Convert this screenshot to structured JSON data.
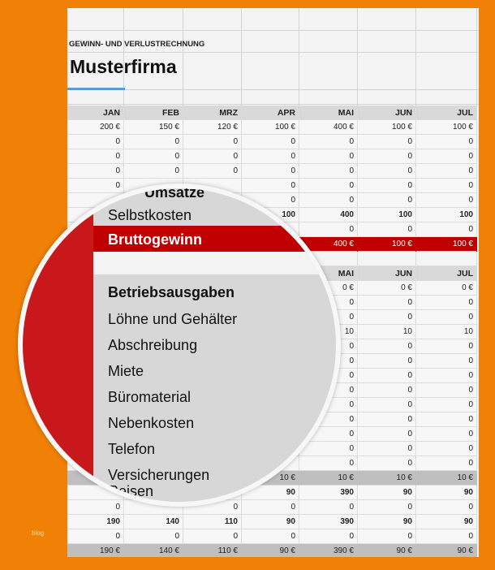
{
  "sheet": {
    "subtitle": "GEWINN- UND VERLUSTRECHNUNG",
    "title": "Musterfirma",
    "months": [
      "JAN",
      "FEB",
      "MRZ",
      "APR",
      "MAI",
      "JUN",
      "JUL"
    ],
    "section1": [
      {
        "type": "normal",
        "cells": [
          "200 €",
          "150 €",
          "120 €",
          "100 €",
          "400 €",
          "100 €",
          "100 €"
        ]
      },
      {
        "type": "normal",
        "cells": [
          "0",
          "0",
          "0",
          "0",
          "0",
          "0",
          "0"
        ]
      },
      {
        "type": "normal",
        "cells": [
          "0",
          "0",
          "0",
          "0",
          "0",
          "0",
          "0"
        ]
      },
      {
        "type": "normal",
        "cells": [
          "0",
          "0",
          "0",
          "0",
          "0",
          "0",
          "0"
        ]
      },
      {
        "type": "normal",
        "cells": [
          "0",
          "",
          "",
          "0",
          "0",
          "0",
          "0"
        ]
      },
      {
        "type": "normal",
        "cells": [
          "",
          "",
          "",
          "0",
          "0",
          "0",
          "0"
        ]
      },
      {
        "type": "bold",
        "cells": [
          "",
          "",
          "",
          "100",
          "400",
          "100",
          "100"
        ]
      },
      {
        "type": "normal",
        "cells": [
          "",
          "",
          "",
          "",
          "0",
          "0",
          "0"
        ]
      },
      {
        "type": "red",
        "cells": [
          "",
          "",
          "",
          "",
          "400 €",
          "100 €",
          "100 €"
        ]
      }
    ],
    "section2_header": [
      "",
      "",
      "",
      "",
      "MAI",
      "JUN",
      "JUL"
    ],
    "section2": [
      {
        "type": "normal",
        "cells": [
          "",
          "",
          "",
          "",
          "0 €",
          "0 €",
          "0 €"
        ]
      },
      {
        "type": "normal",
        "cells": [
          "",
          "",
          "",
          "",
          "0",
          "0",
          "0"
        ]
      },
      {
        "type": "normal",
        "cells": [
          "",
          "",
          "",
          "",
          "0",
          "0",
          "0"
        ]
      },
      {
        "type": "normal",
        "cells": [
          "",
          "",
          "",
          "",
          "10",
          "10",
          "10"
        ]
      },
      {
        "type": "normal",
        "cells": [
          "",
          "",
          "",
          "",
          "0",
          "0",
          "0"
        ]
      },
      {
        "type": "normal",
        "cells": [
          "",
          "",
          "",
          "",
          "0",
          "0",
          "0"
        ]
      },
      {
        "type": "normal",
        "cells": [
          "",
          "",
          "",
          "",
          "0",
          "0",
          "0"
        ]
      },
      {
        "type": "normal",
        "cells": [
          "",
          "",
          "",
          "",
          "0",
          "0",
          "0"
        ]
      },
      {
        "type": "normal",
        "cells": [
          "",
          "",
          "",
          "",
          "0",
          "0",
          "0"
        ]
      },
      {
        "type": "normal",
        "cells": [
          "",
          "",
          "",
          "",
          "0",
          "0",
          "0"
        ]
      },
      {
        "type": "normal",
        "cells": [
          "",
          "",
          "",
          "",
          "0",
          "0",
          "0"
        ]
      },
      {
        "type": "normal",
        "cells": [
          "",
          "",
          "",
          "",
          "0",
          "0",
          "0"
        ]
      },
      {
        "type": "normal",
        "cells": [
          "",
          "",
          "",
          "",
          "0",
          "0",
          "0"
        ]
      },
      {
        "type": "tot",
        "cells": [
          "",
          "",
          "",
          "10 €",
          "10 €",
          "10 €",
          "10 €"
        ]
      },
      {
        "type": "bold",
        "cells": [
          "",
          "",
          "",
          "90",
          "390",
          "90",
          "90"
        ]
      },
      {
        "type": "normal",
        "cells": [
          "0",
          "",
          "0",
          "0",
          "0",
          "0",
          "0"
        ]
      },
      {
        "type": "bold",
        "cells": [
          "190",
          "140",
          "110",
          "90",
          "390",
          "90",
          "90"
        ]
      },
      {
        "type": "normal",
        "cells": [
          "0",
          "0",
          "0",
          "0",
          "0",
          "0",
          "0"
        ]
      },
      {
        "type": "tot",
        "cells": [
          "190 €",
          "140 €",
          "110 €",
          "90 €",
          "390 €",
          "90 €",
          "90 €"
        ]
      }
    ]
  },
  "lens": {
    "umsatz_partial": "Umsätze",
    "selbstkosten": "Selbstkosten",
    "bruttogewinn": "Bruttogewinn",
    "betriebsausgaben": "Betriebsausgaben",
    "items": [
      "Löhne und Gehälter",
      "Abschreibung",
      "Miete",
      "Büromaterial",
      "Nebenkosten",
      "Telefon",
      "Versicherungen",
      "Reisen"
    ]
  },
  "watermark": "blog",
  "colors": {
    "background": "#f08006",
    "red": "#c00000",
    "accent_blue": "#5b9bd5"
  }
}
